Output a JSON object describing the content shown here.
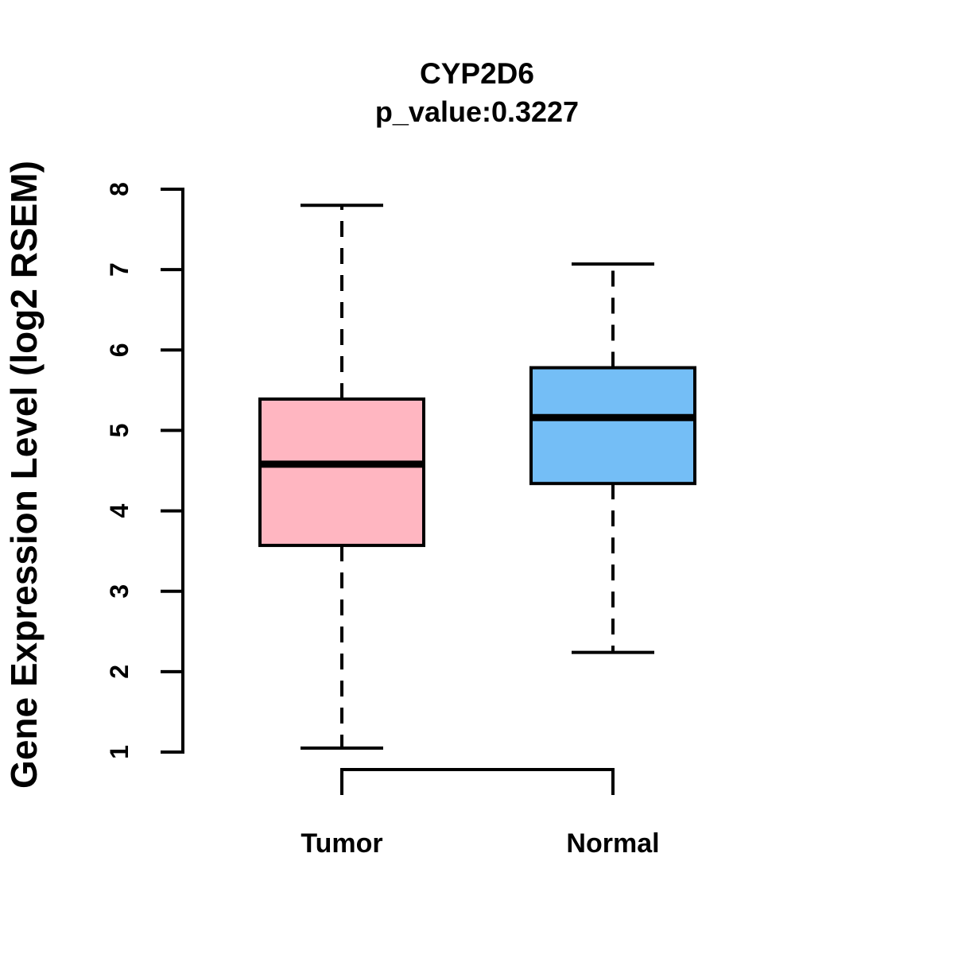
{
  "chart_data": {
    "type": "box",
    "title": "CYP2D6",
    "subtitle": "p_value:0.3227",
    "ylabel": "Gene Expression Level (log2 RSEM)",
    "ylim": [
      1,
      8
    ],
    "yticks": [
      8,
      7,
      6,
      5,
      4,
      3,
      2,
      1
    ],
    "categories": [
      "Tumor",
      "Normal"
    ],
    "grid": false,
    "legend": "none",
    "series": [
      {
        "name": "Tumor",
        "color": "#FFB6C1",
        "whisker_low": 1.05,
        "q1": 3.57,
        "median": 4.58,
        "q3": 5.39,
        "whisker_high": 7.8
      },
      {
        "name": "Normal",
        "color": "#74BEF6",
        "whisker_low": 2.24,
        "q1": 4.34,
        "median": 5.16,
        "q3": 5.78,
        "whisker_high": 7.07
      }
    ],
    "line_color": "#000000"
  }
}
